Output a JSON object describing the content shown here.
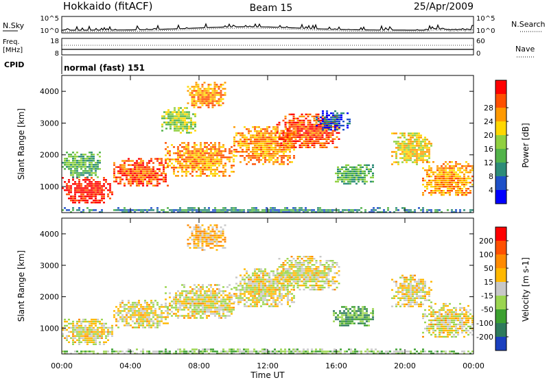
{
  "header": {
    "radar": "Hokkaido (fitACF)",
    "beam": "Beam 15",
    "date": "25/Apr/2009"
  },
  "top_panels": {
    "nsky_label": "N.Sky",
    "nsearch_label": "N.Search",
    "noise_ticks": [
      "10^5",
      "10^0"
    ],
    "freq_label": "Freq.",
    "freq_unit": "[MHz]",
    "freq_ticks": [
      "18",
      "8"
    ],
    "nave_label": "Nave",
    "nave_ticks": [
      "60",
      "0"
    ],
    "cpid_label": "CPID",
    "cpid_value": "normal (fast) 151"
  },
  "chart_data": [
    {
      "type": "heatmap",
      "panel": "power",
      "ylabel": "Slant Range [km]",
      "ylim": [
        180,
        4500
      ],
      "yticks": [
        1000,
        2000,
        3000,
        4000
      ],
      "xlim": [
        0,
        24
      ],
      "colorbar": {
        "label": "Power [dB]",
        "ticks": [
          "4",
          "8",
          "12",
          "16",
          "20",
          "24",
          "28"
        ],
        "colors": [
          "#0000ff",
          "#1e50c8",
          "#2d8c78",
          "#52b34a",
          "#90d040",
          "#ffd700",
          "#ff9900",
          "#ff5000",
          "#ff0000"
        ]
      },
      "features": [
        {
          "t0": 0.0,
          "t1": 3.0,
          "r0": 500,
          "r1": 1300,
          "level": 8
        },
        {
          "t0": 3.0,
          "t1": 6.2,
          "r0": 1000,
          "r1": 1900,
          "level": 7
        },
        {
          "t0": 0.0,
          "t1": 2.2,
          "r0": 1300,
          "r1": 2100,
          "level": 3
        },
        {
          "t0": 6.0,
          "t1": 10.0,
          "r0": 1300,
          "r1": 2400,
          "level": 6
        },
        {
          "t0": 7.3,
          "t1": 9.5,
          "r0": 3500,
          "r1": 4300,
          "level": 6
        },
        {
          "t0": 5.8,
          "t1": 7.8,
          "r0": 2700,
          "r1": 3500,
          "level": 4
        },
        {
          "t0": 10.0,
          "t1": 13.5,
          "r0": 1700,
          "r1": 2900,
          "level": 6
        },
        {
          "t0": 12.5,
          "t1": 16.2,
          "r0": 2200,
          "r1": 3300,
          "level": 7
        },
        {
          "t0": 14.8,
          "t1": 16.8,
          "r0": 2800,
          "r1": 3400,
          "level": 1
        },
        {
          "t0": 15.8,
          "t1": 18.2,
          "r0": 1100,
          "r1": 1700,
          "level": 3
        },
        {
          "t0": 19.2,
          "t1": 21.5,
          "r0": 1700,
          "r1": 2700,
          "level": 5
        },
        {
          "t0": 21.0,
          "t1": 24.0,
          "r0": 700,
          "r1": 1800,
          "level": 6
        },
        {
          "t0": 0.0,
          "t1": 24.0,
          "r0": 180,
          "r1": 350,
          "level": 2
        }
      ]
    },
    {
      "type": "heatmap",
      "panel": "velocity",
      "ylabel": "Slant Range [km]",
      "xlabel": "Time UT",
      "ylim": [
        180,
        4500
      ],
      "yticks": [
        1000,
        2000,
        3000,
        4000
      ],
      "xlim": [
        0,
        24
      ],
      "xticks": [
        "00:00",
        "04:00",
        "08:00",
        "12:00",
        "16:00",
        "20:00",
        "00:00"
      ],
      "colorbar": {
        "label": "Velocity [m s-1]",
        "ticks": [
          "200",
          "100",
          "50",
          "15",
          "-15",
          "-50",
          "-100",
          "-200"
        ],
        "colors": [
          "#1a3fbf",
          "#2e7a5c",
          "#3ca030",
          "#9bd550",
          "#c8c8c8",
          "#ffb800",
          "#ff8a00",
          "#ff5000",
          "#ff0000"
        ]
      },
      "features": [
        {
          "t0": 0.0,
          "t1": 3.0,
          "r0": 500,
          "r1": 1300,
          "level": 4
        },
        {
          "t0": 3.0,
          "t1": 6.2,
          "r0": 1000,
          "r1": 1900,
          "level": 4
        },
        {
          "t0": 6.0,
          "t1": 10.0,
          "r0": 1300,
          "r1": 2400,
          "level": 4
        },
        {
          "t0": 10.0,
          "t1": 13.5,
          "r0": 1700,
          "r1": 2900,
          "level": 4
        },
        {
          "t0": 12.5,
          "t1": 16.2,
          "r0": 2200,
          "r1": 3300,
          "level": 4
        },
        {
          "t0": 7.3,
          "t1": 9.5,
          "r0": 3500,
          "r1": 4300,
          "level": 5
        },
        {
          "t0": 15.8,
          "t1": 18.2,
          "r0": 1100,
          "r1": 1700,
          "level": 2
        },
        {
          "t0": 19.2,
          "t1": 21.5,
          "r0": 1700,
          "r1": 2700,
          "level": 4
        },
        {
          "t0": 21.0,
          "t1": 24.0,
          "r0": 700,
          "r1": 1800,
          "level": 4
        },
        {
          "t0": 0.0,
          "t1": 24.0,
          "r0": 180,
          "r1": 350,
          "level": 3
        }
      ]
    }
  ]
}
